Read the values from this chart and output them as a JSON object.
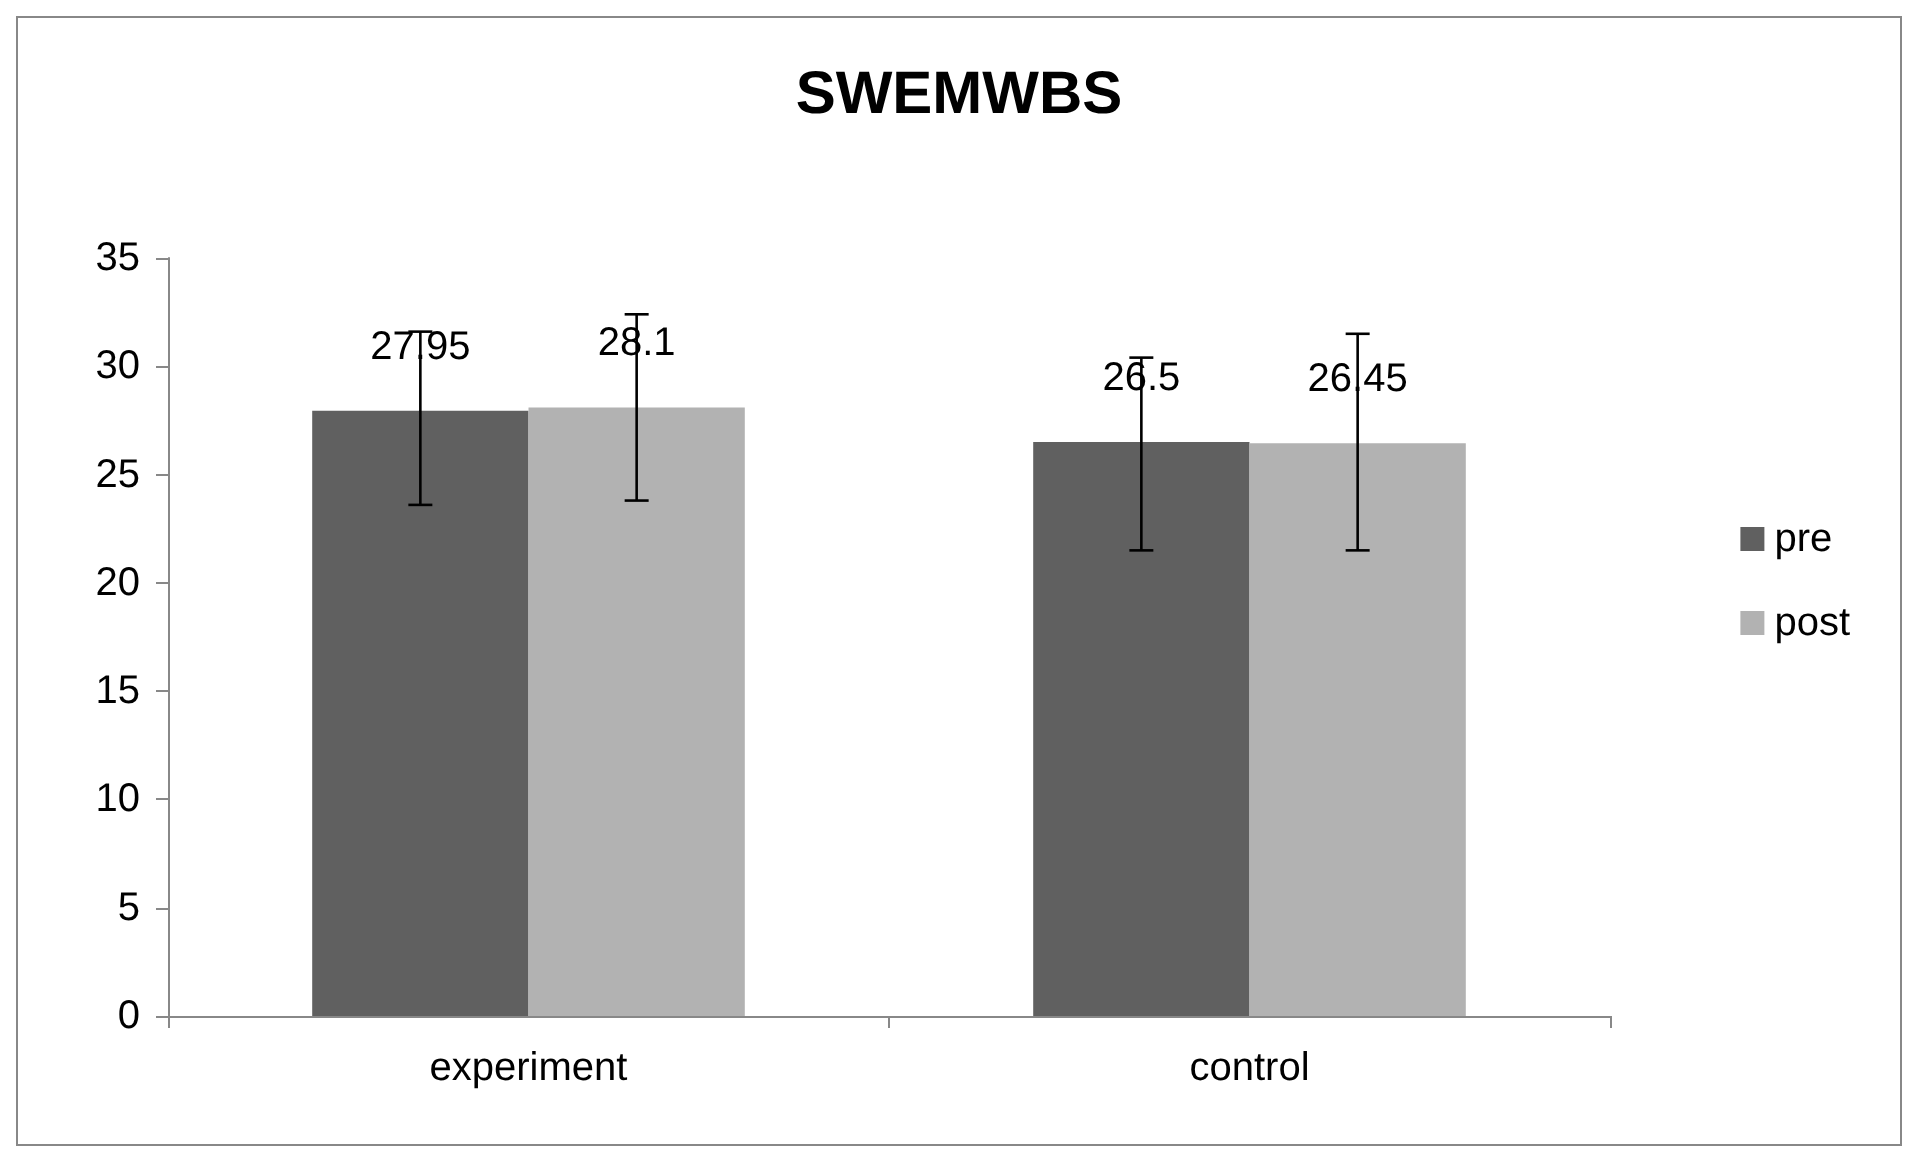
{
  "chart_data": {
    "type": "bar",
    "title": "SWEMWBS",
    "categories": [
      "experiment",
      "control"
    ],
    "series": [
      {
        "name": "pre",
        "color": "#606060",
        "values": [
          27.95,
          26.5
        ],
        "errors": [
          [
            23.6,
            31.6
          ],
          [
            21.5,
            30.4
          ]
        ]
      },
      {
        "name": "post",
        "color": "#b2b2b2",
        "values": [
          28.1,
          26.45
        ],
        "errors": [
          [
            23.8,
            32.4
          ],
          [
            21.5,
            31.5
          ]
        ]
      }
    ],
    "ylim": [
      0,
      35
    ],
    "yticks": [
      0,
      5,
      10,
      15,
      20,
      25,
      30,
      35
    ],
    "grid": false,
    "legend": "right",
    "data_labels": true
  }
}
